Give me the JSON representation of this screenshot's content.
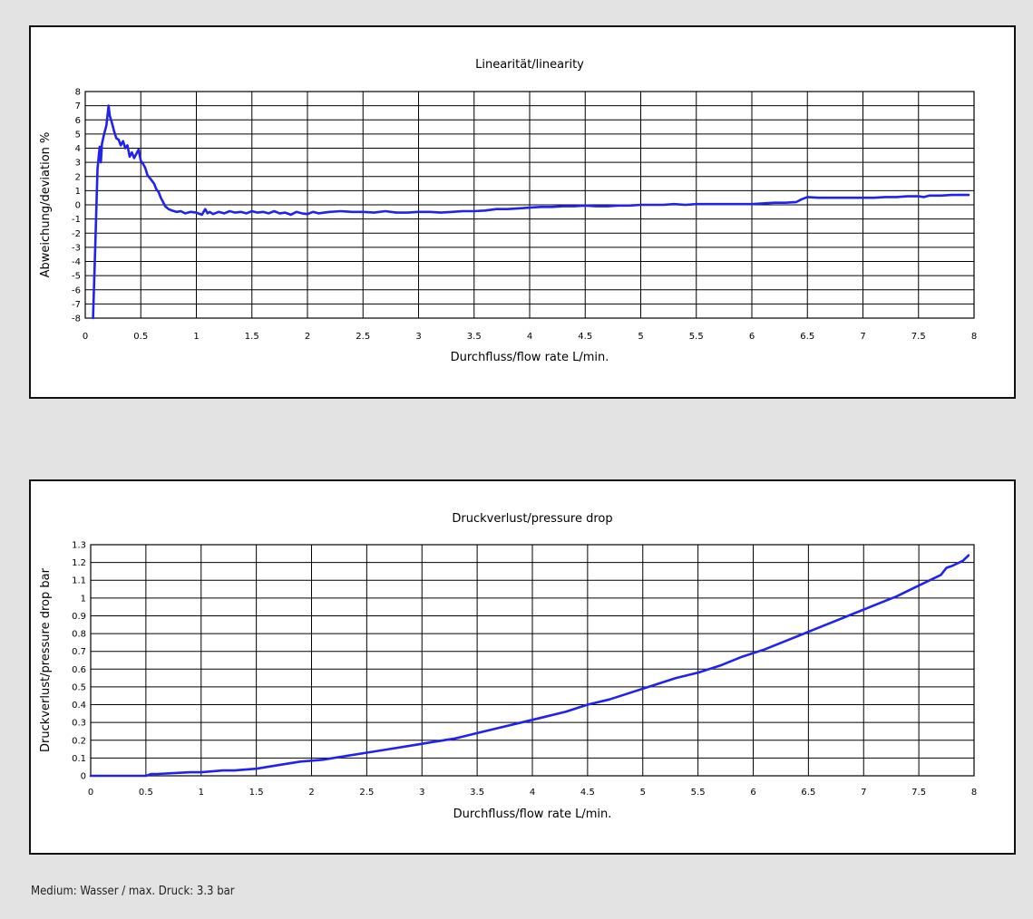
{
  "footer": {
    "note": "Medium: Wasser / max. Druck: 3.3 bar"
  },
  "chart_data": [
    {
      "type": "line",
      "title": "Linearität/linearity",
      "xlabel": "Durchfluss/flow rate L/min.",
      "ylabel": "Abweichung/deviation %",
      "xlim": [
        0,
        8
      ],
      "ylim": [
        -8,
        8
      ],
      "xticks": [
        "0",
        "0.5",
        "1",
        "1.5",
        "2",
        "2.5",
        "3",
        "3.5",
        "4",
        "4.5",
        "5",
        "5.5",
        "6",
        "6.5",
        "7",
        "7.5",
        "8"
      ],
      "yticks": [
        "8",
        "7",
        "6",
        "5",
        "4",
        "3",
        "2",
        "1",
        "0",
        "-1",
        "-2",
        "-3",
        "-4",
        "-5",
        "-6",
        "-7",
        "-8"
      ],
      "grid": true,
      "color": "#2222ee",
      "series": [
        {
          "x": [
            0.07,
            0.09,
            0.11,
            0.13,
            0.14,
            0.15,
            0.17,
            0.19,
            0.21,
            0.22,
            0.24,
            0.26,
            0.28,
            0.3,
            0.32,
            0.34,
            0.36,
            0.38,
            0.4,
            0.42,
            0.44,
            0.46,
            0.48,
            0.5,
            0.52,
            0.54,
            0.56,
            0.58,
            0.6,
            0.62,
            0.64,
            0.66,
            0.68,
            0.7,
            0.72,
            0.75,
            0.78,
            0.82,
            0.86,
            0.9,
            0.95,
            1.0,
            1.05,
            1.08,
            1.1,
            1.12,
            1.15,
            1.2,
            1.25,
            1.3,
            1.35,
            1.4,
            1.45,
            1.5,
            1.55,
            1.6,
            1.65,
            1.7,
            1.75,
            1.8,
            1.85,
            1.9,
            1.95,
            2.0,
            2.05,
            2.1,
            2.15,
            2.2,
            2.3,
            2.4,
            2.5,
            2.6,
            2.7,
            2.8,
            2.9,
            3.0,
            3.1,
            3.2,
            3.3,
            3.4,
            3.5,
            3.6,
            3.7,
            3.8,
            3.9,
            4.0,
            4.1,
            4.2,
            4.3,
            4.4,
            4.5,
            4.6,
            4.7,
            4.8,
            4.9,
            5.0,
            5.1,
            5.2,
            5.3,
            5.4,
            5.5,
            5.6,
            5.7,
            5.8,
            5.9,
            6.0,
            6.1,
            6.2,
            6.3,
            6.4,
            6.45,
            6.5,
            6.6,
            6.7,
            6.8,
            6.9,
            7.0,
            7.1,
            7.2,
            7.3,
            7.4,
            7.5,
            7.55,
            7.6,
            7.7,
            7.8,
            7.9,
            7.95
          ],
          "y": [
            -8,
            -3,
            2.5,
            4.1,
            3.0,
            4.3,
            5.0,
            5.6,
            7.0,
            6.3,
            5.8,
            5.2,
            4.7,
            4.6,
            4.2,
            4.5,
            4.0,
            4.2,
            3.4,
            3.7,
            3.3,
            3.6,
            3.9,
            3.1,
            2.9,
            2.6,
            2.1,
            1.9,
            1.7,
            1.5,
            1.1,
            0.9,
            0.5,
            0.2,
            -0.1,
            -0.3,
            -0.4,
            -0.5,
            -0.45,
            -0.6,
            -0.5,
            -0.55,
            -0.7,
            -0.3,
            -0.6,
            -0.5,
            -0.65,
            -0.5,
            -0.6,
            -0.45,
            -0.55,
            -0.5,
            -0.6,
            -0.45,
            -0.55,
            -0.5,
            -0.6,
            -0.45,
            -0.6,
            -0.55,
            -0.7,
            -0.5,
            -0.6,
            -0.65,
            -0.5,
            -0.6,
            -0.55,
            -0.5,
            -0.45,
            -0.5,
            -0.5,
            -0.55,
            -0.45,
            -0.55,
            -0.55,
            -0.5,
            -0.5,
            -0.55,
            -0.5,
            -0.45,
            -0.45,
            -0.4,
            -0.3,
            -0.3,
            -0.25,
            -0.2,
            -0.15,
            -0.15,
            -0.1,
            -0.1,
            -0.05,
            -0.1,
            -0.1,
            -0.05,
            -0.05,
            0,
            0,
            0,
            0.05,
            0,
            0.05,
            0.05,
            0.05,
            0.05,
            0.05,
            0.05,
            0.1,
            0.15,
            0.15,
            0.2,
            0.4,
            0.55,
            0.5,
            0.5,
            0.5,
            0.5,
            0.5,
            0.5,
            0.55,
            0.55,
            0.6,
            0.6,
            0.55,
            0.65,
            0.65,
            0.7,
            0.7,
            0.7
          ]
        }
      ]
    },
    {
      "type": "line",
      "title": "Druckverlust/pressure drop",
      "xlabel": "Durchfluss/flow rate L/min.",
      "ylabel": "Druckverlust/pressure drop bar",
      "xlim": [
        0,
        8
      ],
      "ylim": [
        0,
        1.3
      ],
      "xticks": [
        "0",
        "0.5",
        "1",
        "1.5",
        "2",
        "2.5",
        "3",
        "3.5",
        "4",
        "4.5",
        "5",
        "5.5",
        "6",
        "6.5",
        "7",
        "7.5",
        "8"
      ],
      "yticks": [
        "1.3",
        "1.2",
        "1.1",
        "1",
        "0.9",
        "0.8",
        "0.7",
        "0.6",
        "0.5",
        "0.4",
        "0.3",
        "0.2",
        "0.1",
        "0"
      ],
      "grid": true,
      "color": "#2222ee",
      "series": [
        {
          "x": [
            0,
            0.5,
            0.55,
            0.6,
            0.9,
            1.0,
            1.2,
            1.3,
            1.5,
            1.7,
            1.9,
            2.1,
            2.3,
            2.5,
            2.7,
            2.9,
            3.1,
            3.3,
            3.5,
            3.7,
            3.9,
            4.1,
            4.3,
            4.5,
            4.7,
            4.9,
            5.1,
            5.3,
            5.5,
            5.7,
            5.9,
            6.1,
            6.3,
            6.5,
            6.7,
            6.9,
            7.1,
            7.3,
            7.5,
            7.7,
            7.75,
            7.8,
            7.9,
            7.95
          ],
          "y": [
            0,
            0,
            0.01,
            0.01,
            0.02,
            0.02,
            0.03,
            0.03,
            0.04,
            0.06,
            0.08,
            0.09,
            0.11,
            0.13,
            0.15,
            0.17,
            0.19,
            0.21,
            0.24,
            0.27,
            0.3,
            0.33,
            0.36,
            0.4,
            0.43,
            0.47,
            0.51,
            0.55,
            0.58,
            0.62,
            0.67,
            0.71,
            0.76,
            0.81,
            0.86,
            0.91,
            0.96,
            1.01,
            1.07,
            1.13,
            1.17,
            1.18,
            1.21,
            1.24
          ]
        }
      ]
    }
  ]
}
